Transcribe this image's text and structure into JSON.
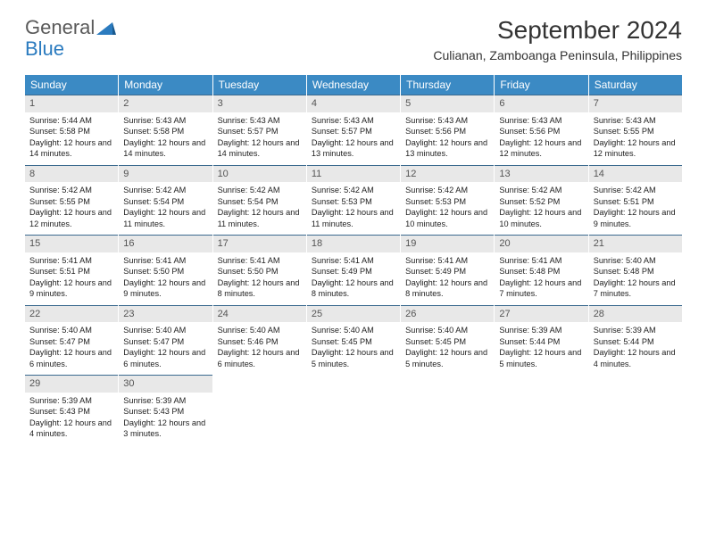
{
  "logo": {
    "text1": "General",
    "text2": "Blue"
  },
  "title": "September 2024",
  "subtitle": "Culianan, Zamboanga Peninsula, Philippines",
  "colors": {
    "header_bg": "#3b8ac4",
    "header_text": "#ffffff",
    "daynum_bg": "#e8e8e8",
    "daynum_border": "#3b6a8f",
    "text": "#222222",
    "logo_gray": "#5a5a5a",
    "logo_blue": "#2b7bbf"
  },
  "daysOfWeek": [
    "Sunday",
    "Monday",
    "Tuesday",
    "Wednesday",
    "Thursday",
    "Friday",
    "Saturday"
  ],
  "weeks": [
    [
      {
        "n": "1",
        "sr": "Sunrise: 5:44 AM",
        "ss": "Sunset: 5:58 PM",
        "dl": "Daylight: 12 hours and 14 minutes."
      },
      {
        "n": "2",
        "sr": "Sunrise: 5:43 AM",
        "ss": "Sunset: 5:58 PM",
        "dl": "Daylight: 12 hours and 14 minutes."
      },
      {
        "n": "3",
        "sr": "Sunrise: 5:43 AM",
        "ss": "Sunset: 5:57 PM",
        "dl": "Daylight: 12 hours and 14 minutes."
      },
      {
        "n": "4",
        "sr": "Sunrise: 5:43 AM",
        "ss": "Sunset: 5:57 PM",
        "dl": "Daylight: 12 hours and 13 minutes."
      },
      {
        "n": "5",
        "sr": "Sunrise: 5:43 AM",
        "ss": "Sunset: 5:56 PM",
        "dl": "Daylight: 12 hours and 13 minutes."
      },
      {
        "n": "6",
        "sr": "Sunrise: 5:43 AM",
        "ss": "Sunset: 5:56 PM",
        "dl": "Daylight: 12 hours and 12 minutes."
      },
      {
        "n": "7",
        "sr": "Sunrise: 5:43 AM",
        "ss": "Sunset: 5:55 PM",
        "dl": "Daylight: 12 hours and 12 minutes."
      }
    ],
    [
      {
        "n": "8",
        "sr": "Sunrise: 5:42 AM",
        "ss": "Sunset: 5:55 PM",
        "dl": "Daylight: 12 hours and 12 minutes."
      },
      {
        "n": "9",
        "sr": "Sunrise: 5:42 AM",
        "ss": "Sunset: 5:54 PM",
        "dl": "Daylight: 12 hours and 11 minutes."
      },
      {
        "n": "10",
        "sr": "Sunrise: 5:42 AM",
        "ss": "Sunset: 5:54 PM",
        "dl": "Daylight: 12 hours and 11 minutes."
      },
      {
        "n": "11",
        "sr": "Sunrise: 5:42 AM",
        "ss": "Sunset: 5:53 PM",
        "dl": "Daylight: 12 hours and 11 minutes."
      },
      {
        "n": "12",
        "sr": "Sunrise: 5:42 AM",
        "ss": "Sunset: 5:53 PM",
        "dl": "Daylight: 12 hours and 10 minutes."
      },
      {
        "n": "13",
        "sr": "Sunrise: 5:42 AM",
        "ss": "Sunset: 5:52 PM",
        "dl": "Daylight: 12 hours and 10 minutes."
      },
      {
        "n": "14",
        "sr": "Sunrise: 5:42 AM",
        "ss": "Sunset: 5:51 PM",
        "dl": "Daylight: 12 hours and 9 minutes."
      }
    ],
    [
      {
        "n": "15",
        "sr": "Sunrise: 5:41 AM",
        "ss": "Sunset: 5:51 PM",
        "dl": "Daylight: 12 hours and 9 minutes."
      },
      {
        "n": "16",
        "sr": "Sunrise: 5:41 AM",
        "ss": "Sunset: 5:50 PM",
        "dl": "Daylight: 12 hours and 9 minutes."
      },
      {
        "n": "17",
        "sr": "Sunrise: 5:41 AM",
        "ss": "Sunset: 5:50 PM",
        "dl": "Daylight: 12 hours and 8 minutes."
      },
      {
        "n": "18",
        "sr": "Sunrise: 5:41 AM",
        "ss": "Sunset: 5:49 PM",
        "dl": "Daylight: 12 hours and 8 minutes."
      },
      {
        "n": "19",
        "sr": "Sunrise: 5:41 AM",
        "ss": "Sunset: 5:49 PM",
        "dl": "Daylight: 12 hours and 8 minutes."
      },
      {
        "n": "20",
        "sr": "Sunrise: 5:41 AM",
        "ss": "Sunset: 5:48 PM",
        "dl": "Daylight: 12 hours and 7 minutes."
      },
      {
        "n": "21",
        "sr": "Sunrise: 5:40 AM",
        "ss": "Sunset: 5:48 PM",
        "dl": "Daylight: 12 hours and 7 minutes."
      }
    ],
    [
      {
        "n": "22",
        "sr": "Sunrise: 5:40 AM",
        "ss": "Sunset: 5:47 PM",
        "dl": "Daylight: 12 hours and 6 minutes."
      },
      {
        "n": "23",
        "sr": "Sunrise: 5:40 AM",
        "ss": "Sunset: 5:47 PM",
        "dl": "Daylight: 12 hours and 6 minutes."
      },
      {
        "n": "24",
        "sr": "Sunrise: 5:40 AM",
        "ss": "Sunset: 5:46 PM",
        "dl": "Daylight: 12 hours and 6 minutes."
      },
      {
        "n": "25",
        "sr": "Sunrise: 5:40 AM",
        "ss": "Sunset: 5:45 PM",
        "dl": "Daylight: 12 hours and 5 minutes."
      },
      {
        "n": "26",
        "sr": "Sunrise: 5:40 AM",
        "ss": "Sunset: 5:45 PM",
        "dl": "Daylight: 12 hours and 5 minutes."
      },
      {
        "n": "27",
        "sr": "Sunrise: 5:39 AM",
        "ss": "Sunset: 5:44 PM",
        "dl": "Daylight: 12 hours and 5 minutes."
      },
      {
        "n": "28",
        "sr": "Sunrise: 5:39 AM",
        "ss": "Sunset: 5:44 PM",
        "dl": "Daylight: 12 hours and 4 minutes."
      }
    ],
    [
      {
        "n": "29",
        "sr": "Sunrise: 5:39 AM",
        "ss": "Sunset: 5:43 PM",
        "dl": "Daylight: 12 hours and 4 minutes."
      },
      {
        "n": "30",
        "sr": "Sunrise: 5:39 AM",
        "ss": "Sunset: 5:43 PM",
        "dl": "Daylight: 12 hours and 3 minutes."
      },
      null,
      null,
      null,
      null,
      null
    ]
  ]
}
